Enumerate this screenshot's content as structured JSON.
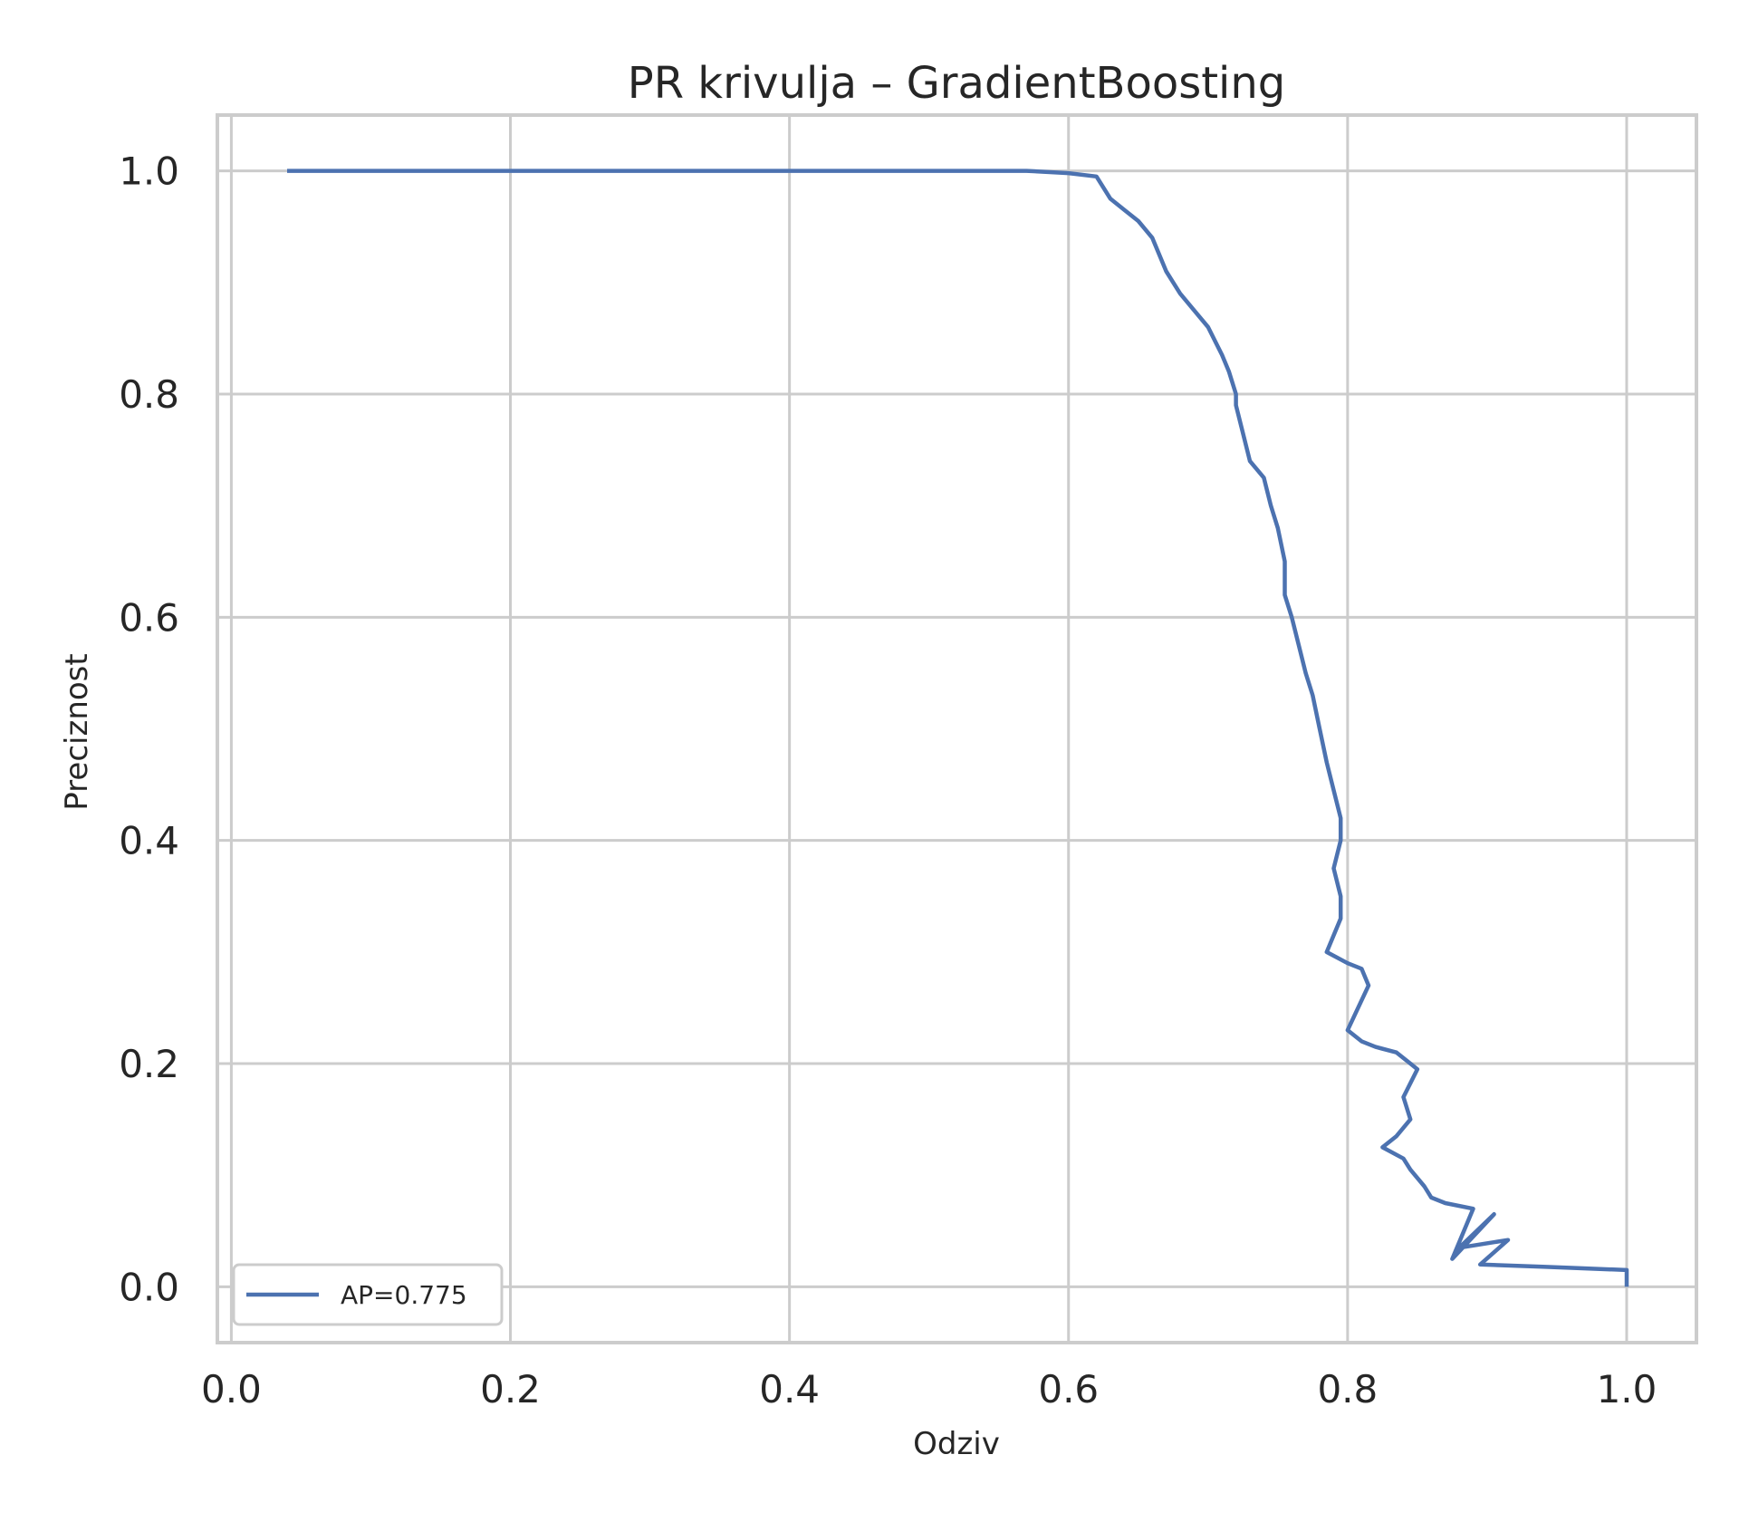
{
  "chart_data": {
    "type": "line",
    "title": "PR krivulja – GradientBoosting",
    "xlabel": "Odziv",
    "ylabel": "Preciznost",
    "xlim": [
      -0.01,
      1.05
    ],
    "ylim": [
      -0.05,
      1.05
    ],
    "xticks": [
      0.0,
      0.2,
      0.4,
      0.6,
      0.8,
      1.0
    ],
    "yticks": [
      0.0,
      0.2,
      0.4,
      0.6,
      0.8,
      1.0
    ],
    "xtick_labels": [
      "0.0",
      "0.2",
      "0.4",
      "0.6",
      "0.8",
      "1.0"
    ],
    "ytick_labels": [
      "0.0",
      "0.2",
      "0.4",
      "0.6",
      "0.8",
      "1.0"
    ],
    "grid": true,
    "legend_position": "lower-left",
    "colors": {
      "line": "#4c72b0",
      "grid": "#cccccc",
      "frame": "#cccccc",
      "text": "#262626"
    },
    "series": [
      {
        "name": "AP=0.775",
        "x": [
          0.04,
          0.57,
          0.6,
          0.62,
          0.63,
          0.64,
          0.65,
          0.66,
          0.67,
          0.675,
          0.68,
          0.69,
          0.7,
          0.71,
          0.715,
          0.72,
          0.72,
          0.725,
          0.73,
          0.74,
          0.745,
          0.75,
          0.755,
          0.755,
          0.76,
          0.765,
          0.77,
          0.775,
          0.78,
          0.785,
          0.79,
          0.795,
          0.795,
          0.79,
          0.795,
          0.795,
          0.79,
          0.785,
          0.8,
          0.81,
          0.815,
          0.8,
          0.81,
          0.82,
          0.835,
          0.845,
          0.85,
          0.84,
          0.845,
          0.835,
          0.825,
          0.84,
          0.845,
          0.855,
          0.86,
          0.87,
          0.89,
          0.875,
          0.905,
          0.88,
          0.915,
          0.895,
          0.94,
          1.0,
          1.0
        ],
        "y": [
          1.0,
          1.0,
          0.998,
          0.995,
          0.975,
          0.965,
          0.955,
          0.94,
          0.91,
          0.9,
          0.89,
          0.875,
          0.86,
          0.835,
          0.82,
          0.8,
          0.79,
          0.765,
          0.74,
          0.725,
          0.7,
          0.68,
          0.65,
          0.62,
          0.6,
          0.575,
          0.55,
          0.53,
          0.5,
          0.47,
          0.445,
          0.42,
          0.4,
          0.375,
          0.35,
          0.33,
          0.315,
          0.3,
          0.29,
          0.285,
          0.27,
          0.23,
          0.22,
          0.215,
          0.21,
          0.2,
          0.195,
          0.17,
          0.15,
          0.135,
          0.125,
          0.115,
          0.105,
          0.09,
          0.08,
          0.075,
          0.07,
          0.025,
          0.065,
          0.035,
          0.042,
          0.02,
          0.018,
          0.015,
          0.0
        ]
      }
    ],
    "legend": {
      "label": "AP=0.775"
    }
  }
}
